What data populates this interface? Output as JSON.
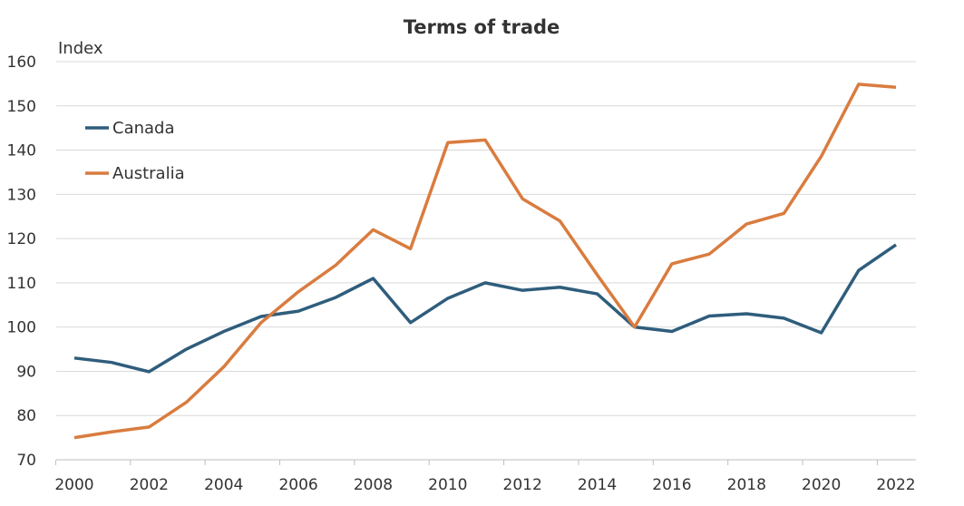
{
  "chart_data": {
    "type": "line",
    "title": "Terms of trade",
    "ylabel": "Index",
    "xlabel": "",
    "ylim": [
      70,
      160
    ],
    "yticks": [
      70,
      80,
      90,
      100,
      110,
      120,
      130,
      140,
      150,
      160
    ],
    "xlim": [
      2000,
      2022
    ],
    "xticks": [
      2000,
      2002,
      2004,
      2006,
      2008,
      2010,
      2012,
      2014,
      2016,
      2018,
      2020,
      2022
    ],
    "grid": true,
    "legend": "top-left",
    "x": [
      2000,
      2001,
      2002,
      2003,
      2004,
      2005,
      2006,
      2007,
      2008,
      2009,
      2010,
      2011,
      2012,
      2013,
      2014,
      2015,
      2016,
      2017,
      2018,
      2019,
      2020,
      2021,
      2022
    ],
    "series": [
      {
        "name": "Canada",
        "color": "#2F5D7C",
        "values": [
          93,
          92,
          89.9,
          95,
          99,
          102.4,
          103.6,
          106.7,
          111,
          101,
          106.5,
          110,
          108.3,
          109,
          107.5,
          100,
          99,
          102.5,
          103,
          102,
          98.7,
          112.8,
          118.6
        ]
      },
      {
        "name": "Australia",
        "color": "#D97C3F",
        "values": [
          75,
          76.3,
          77.4,
          83,
          91,
          101,
          108,
          114,
          122,
          117.7,
          141.7,
          142.3,
          129,
          124,
          111.8,
          100,
          114.3,
          116.5,
          123.3,
          125.7,
          138.6,
          154.9,
          154.2
        ]
      }
    ]
  }
}
